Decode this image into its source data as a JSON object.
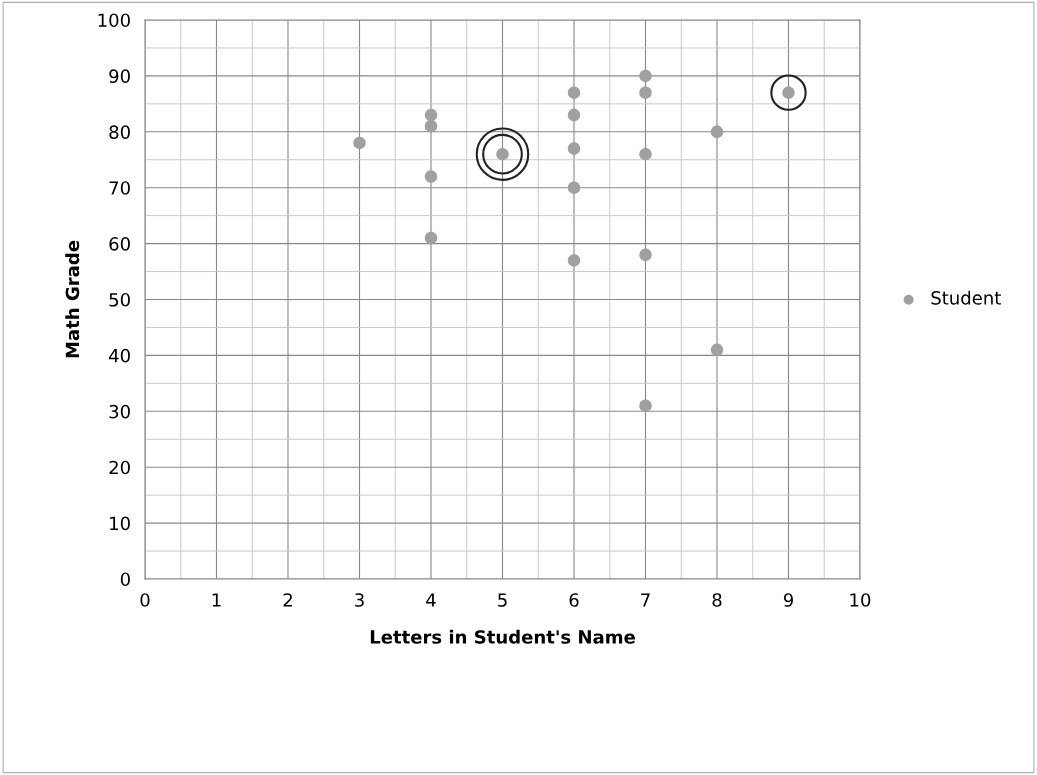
{
  "chart_data": {
    "type": "scatter",
    "xlabel": "Letters in Student's Name",
    "ylabel": "Math Grade",
    "x": [
      3,
      4,
      4,
      4,
      4,
      5,
      6,
      6,
      6,
      6,
      6,
      7,
      7,
      7,
      7,
      7,
      8,
      8,
      9
    ],
    "series": [
      {
        "name": "Student",
        "color": "#a0a0a0",
        "values": [
          78,
          83,
          81,
          72,
          61,
          76,
          87,
          83,
          77,
          70,
          57,
          90,
          87,
          76,
          58,
          31,
          80,
          41,
          87
        ]
      }
    ],
    "xlim": [
      0,
      10
    ],
    "ylim": [
      0,
      100
    ],
    "xticks": [
      0,
      1,
      2,
      3,
      4,
      5,
      6,
      7,
      8,
      9,
      10
    ],
    "yticks": [
      0,
      10,
      20,
      30,
      40,
      50,
      60,
      70,
      80,
      90,
      100
    ],
    "grid": true,
    "legend": "right",
    "marker": "circle"
  }
}
